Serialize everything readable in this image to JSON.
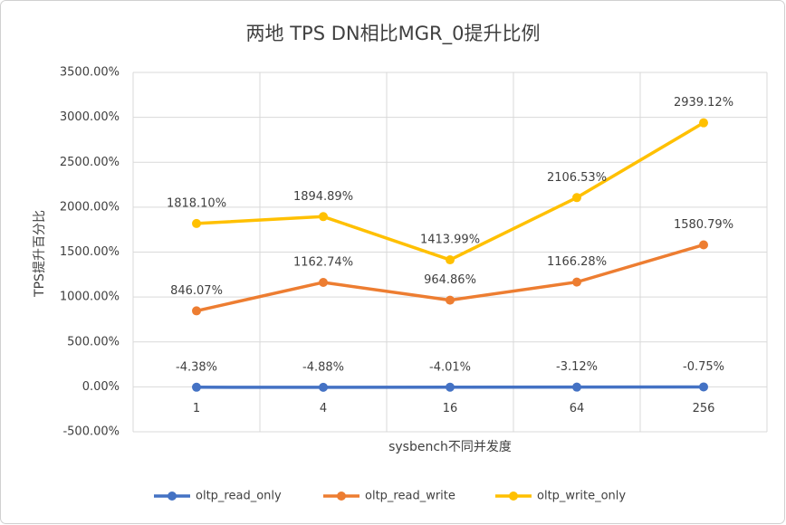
{
  "chart_data": {
    "type": "line",
    "title": "两地 TPS DN相比MGR_0提升比例",
    "x_label": "sysbench不同并发度",
    "y_label": "TPS提升百分比",
    "categories": [
      "1",
      "4",
      "16",
      "64",
      "256"
    ],
    "series": [
      {
        "name": "oltp_read_only",
        "color": "#4472c4",
        "values": [
          -4.38,
          -4.88,
          -4.01,
          -3.12,
          -0.75
        ],
        "value_labels": [
          "-4.38%",
          "-4.88%",
          "-4.01%",
          "-3.12%",
          "-0.75%"
        ]
      },
      {
        "name": "oltp_read_write",
        "color": "#ed7d31",
        "values": [
          846.07,
          1162.74,
          964.86,
          1166.28,
          1580.79
        ],
        "value_labels": [
          "846.07%",
          "1162.74%",
          "964.86%",
          "1166.28%",
          "1580.79%"
        ]
      },
      {
        "name": "oltp_write_only",
        "color": "#ffc000",
        "values": [
          1818.1,
          1894.89,
          1413.99,
          2106.53,
          2939.12
        ],
        "value_labels": [
          "1818.10%",
          "1894.89%",
          "1413.99%",
          "2106.53%",
          "2939.12%"
        ]
      }
    ],
    "ylim": [
      -500,
      3500
    ],
    "yticks": [
      {
        "value": -500,
        "label": "-500.00%"
      },
      {
        "value": 0,
        "label": "0.00%"
      },
      {
        "value": 500,
        "label": "500.00%"
      },
      {
        "value": 1000,
        "label": "1000.00%"
      },
      {
        "value": 1500,
        "label": "1500.00%"
      },
      {
        "value": 2000,
        "label": "2000.00%"
      },
      {
        "value": 2500,
        "label": "2500.00%"
      },
      {
        "value": 3000,
        "label": "3000.00%"
      },
      {
        "value": 3500,
        "label": "3500.00%"
      }
    ],
    "grid": true,
    "legend": "bottom"
  }
}
